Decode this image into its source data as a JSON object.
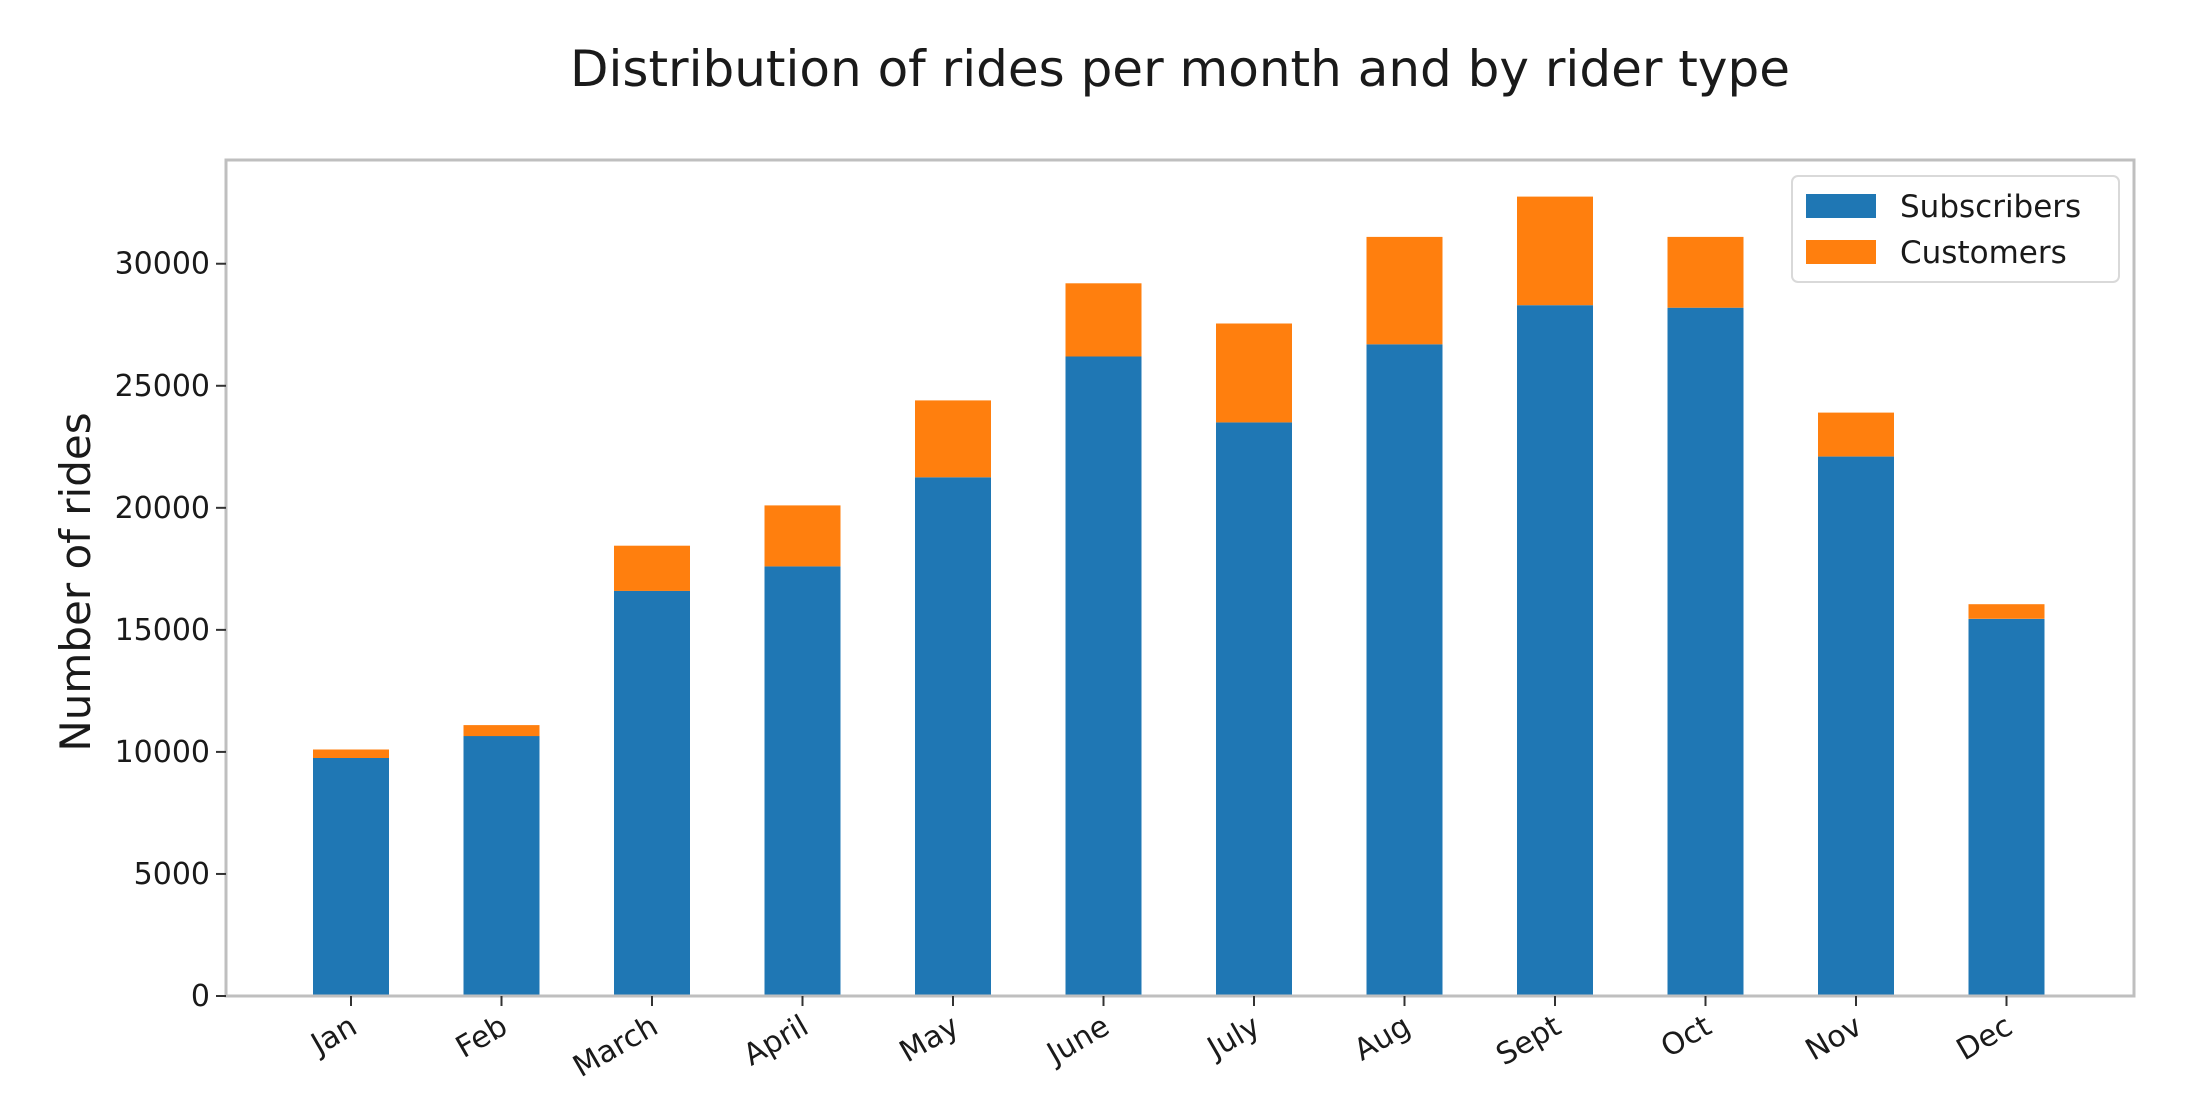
{
  "chart_data": {
    "type": "bar",
    "stacked": true,
    "title": "Distribution of rides per month and by rider type",
    "xlabel": "",
    "ylabel": "Number of rides",
    "categories": [
      "Jan",
      "Feb",
      "March",
      "April",
      "May",
      "June",
      "July",
      "Aug",
      "Sept",
      "Oct",
      "Nov",
      "Dec"
    ],
    "series": [
      {
        "name": "Subscribers",
        "color": "#1f77b4",
        "values": [
          9750,
          10650,
          16600,
          17600,
          21250,
          26200,
          23500,
          26700,
          28300,
          28200,
          22100,
          15450
        ]
      },
      {
        "name": "Customers",
        "color": "#ff7f0e",
        "values": [
          350,
          450,
          1850,
          2500,
          3150,
          3000,
          4050,
          4400,
          4450,
          2900,
          1800,
          600
        ]
      }
    ],
    "ylim": [
      0,
      34250
    ],
    "yticks": [
      0,
      5000,
      10000,
      15000,
      20000,
      25000,
      30000
    ],
    "grid": false,
    "legend_position": "top-right"
  }
}
